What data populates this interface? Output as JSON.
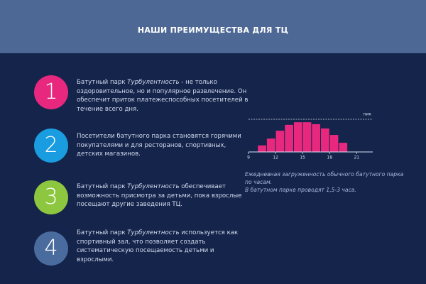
{
  "header": {
    "title": "НАШИ ПРЕИМУЩЕСТВА ДЛЯ ТЦ"
  },
  "items": [
    {
      "number": "1",
      "color": "#e8287e",
      "parts": [
        "Батутный парк ",
        "Турбулентность",
        "  - не только оздоровительное, но и популярное развлечение. Он обеспечит приток платежеспособных посетителей в течение всего дня."
      ]
    },
    {
      "number": "2",
      "color": "#1a9de0",
      "parts": [
        "Посетители батутного парка становятся горячими покупателями и для ресторанов, спортивных, детских магазинов."
      ]
    },
    {
      "number": "3",
      "color": "#8dc63f",
      "parts": [
        "Батутный парк ",
        "Турбулентность",
        " обеспечивает возможность присмотра за детьми, пока взрослые посещают другие заведения ТЦ."
      ]
    },
    {
      "number": "4",
      "color": "#4a6b9e",
      "parts": [
        "Батутный парк ",
        "Турбулентность",
        "  используется как спортивный зал, что позволяет создать систематическую посещаемость детьми и взрослыми."
      ]
    }
  ],
  "chart_data": {
    "type": "histogram",
    "color": "#e8287e",
    "bins": [
      10,
      11,
      12,
      13,
      14,
      15,
      16,
      17,
      18,
      19,
      20
    ],
    "values": [
      20,
      41,
      65,
      83,
      91,
      91,
      85,
      72,
      52,
      28
    ],
    "xlim": [
      9,
      22
    ],
    "xticks": [
      9,
      12,
      15,
      18,
      21
    ],
    "ylim": [
      0,
      100
    ],
    "peak_label": "пик",
    "caption": [
      "Ежедневная загруженность обычного батутного парка по часам.",
      "В батутном парке проводят 1,5-3 часа."
    ]
  }
}
